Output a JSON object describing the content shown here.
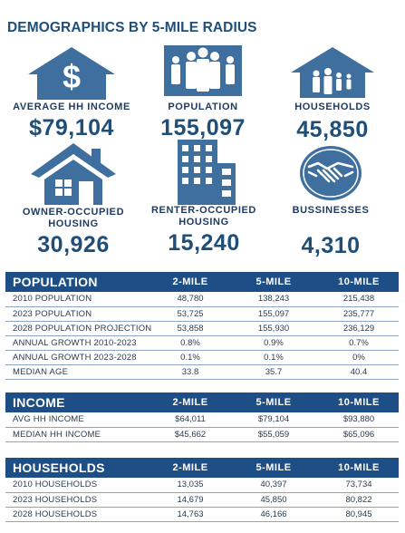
{
  "title": "DEMOGRAPHICS BY 5-MILE RADIUS",
  "stats": [
    {
      "label": "AVERAGE HH INCOME",
      "value": "$79,104",
      "icon": "dollar-house-icon"
    },
    {
      "label": "POPULATION",
      "value": "155,097",
      "icon": "people-icon"
    },
    {
      "label": "HOUSEHOLDS",
      "value": "45,850",
      "icon": "family-house-icon"
    },
    {
      "label": "OWNER-OCCUPIED HOUSING",
      "value": "30,926",
      "icon": "house-icon"
    },
    {
      "label": "RENTER-OCCUPIED HOUSING",
      "value": "15,240",
      "icon": "building-icon"
    },
    {
      "label": "BUSSINESSES",
      "value": "4,310",
      "icon": "handshake-icon"
    }
  ],
  "columns": [
    "2-MILE",
    "5-MILE",
    "10-MILE"
  ],
  "population": {
    "title": "POPULATION",
    "rows": [
      {
        "label": "2010 POPULATION",
        "values": [
          "48,780",
          "138,243",
          "215,438"
        ]
      },
      {
        "label": "2023 POPULATION",
        "values": [
          "53,725",
          "155,097",
          "235,777"
        ]
      },
      {
        "label": "2028 POPULATION PROJECTION",
        "values": [
          "53,858",
          "155,930",
          "236,129"
        ]
      },
      {
        "label": "ANNUAL GROWTH 2010-2023",
        "values": [
          "0.8%",
          "0.9%",
          "0.7%"
        ]
      },
      {
        "label": "ANNUAL GROWTH 2023-2028",
        "values": [
          "0.1%",
          "0.1%",
          "0%"
        ]
      },
      {
        "label": "MEDIAN AGE",
        "values": [
          "33.8",
          "35.7",
          "40.4"
        ]
      }
    ]
  },
  "income": {
    "title": "INCOME",
    "rows": [
      {
        "label": "AVG HH INCOME",
        "values": [
          "$64,011",
          "$79,104",
          "$93,880"
        ]
      },
      {
        "label": "MEDIAN HH INCOME",
        "values": [
          "$45,662",
          "$55,059",
          "$65,096"
        ]
      }
    ]
  },
  "households": {
    "title": "HOUSEHOLDS",
    "rows": [
      {
        "label": "2010 HOUSEHOLDS",
        "values": [
          "13,035",
          "40,397",
          "73,734"
        ]
      },
      {
        "label": "2023 HOUSEHOLDS",
        "values": [
          "14,679",
          "45,850",
          "80,822"
        ]
      },
      {
        "label": "2028 HOUSEHOLDS",
        "values": [
          "14,763",
          "46,166",
          "80,945"
        ]
      }
    ]
  },
  "colors": {
    "accent": "#1d4f86",
    "icon": "#3f6f9f",
    "text": "#1f3a5f"
  }
}
